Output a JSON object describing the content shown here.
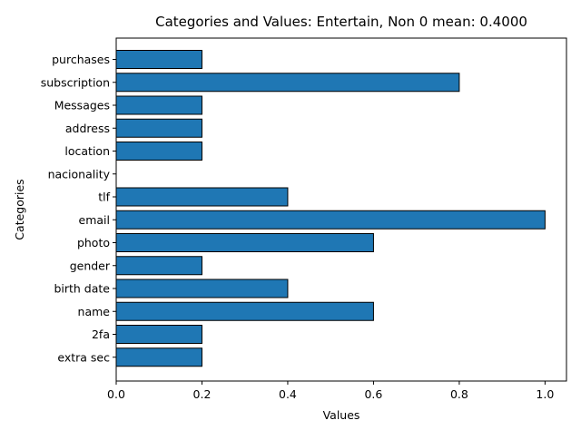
{
  "chart_data": {
    "type": "bar",
    "orientation": "horizontal",
    "title": "Categories and Values: Entertain, Non 0 mean: 0.4000",
    "xlabel": "Values",
    "ylabel": "Categories",
    "categories": [
      "purchases",
      "subscription",
      "Messages",
      "address",
      "location",
      "nacionality",
      "tlf",
      "email",
      "photo",
      "gender",
      "birth date",
      "name",
      "2fa",
      "extra sec"
    ],
    "values": [
      0.2,
      0.8,
      0.2,
      0.2,
      0.2,
      0.0,
      0.4,
      1.0,
      0.6,
      0.2,
      0.4,
      0.6,
      0.2,
      0.2
    ],
    "xlim": [
      0,
      1.05
    ],
    "xticks": [
      "0.0",
      "0.2",
      "0.4",
      "0.6",
      "0.8",
      "1.0"
    ],
    "grid": false,
    "legend": "none",
    "bar_color": "#1f77b4",
    "edge_color": "#000000"
  }
}
